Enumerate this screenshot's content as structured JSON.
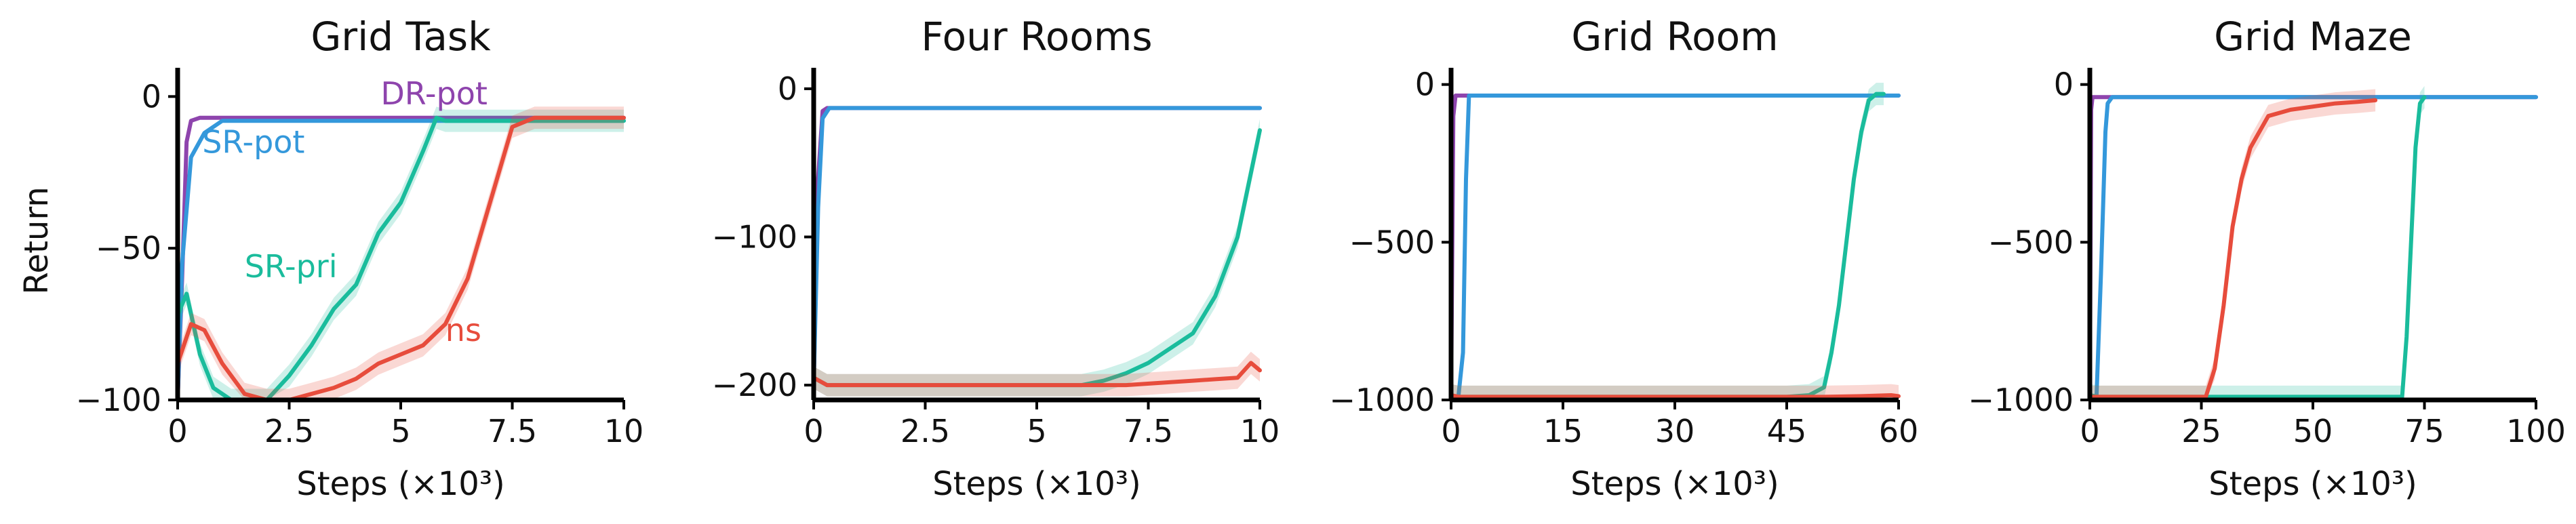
{
  "colors": {
    "DR-pot": "#8e44ad",
    "SR-pot": "#3498db",
    "SR-pri": "#1abc9c",
    "ns": "#e74c3c"
  },
  "chart_data": [
    {
      "type": "line",
      "title": "Grid Task",
      "xlabel": "Steps (×10³)",
      "ylabel": "Return",
      "xlim": [
        0,
        10
      ],
      "ylim": [
        -100,
        5
      ],
      "xticks": [
        0,
        2.5,
        5,
        7.5,
        10
      ],
      "xtick_labels": [
        "0",
        "2.5",
        "5",
        "7.5",
        "10"
      ],
      "yticks": [
        0,
        -50,
        -100
      ],
      "ytick_labels": [
        "0",
        "−50",
        "−100"
      ],
      "grid": false,
      "annotations": [
        {
          "text": "DR-pot",
          "series": "DR-pot",
          "x": 4.55,
          "y": 1
        },
        {
          "text": "SR-pot",
          "series": "SR-pot",
          "x": 0.55,
          "y": -15
        },
        {
          "text": "SR-pri",
          "series": "SR-pri",
          "x": 1.5,
          "y": -56
        },
        {
          "text": "ns",
          "series": "ns",
          "x": 6.0,
          "y": -77
        }
      ],
      "series": [
        {
          "name": "DR-pot",
          "x": [
            0,
            0.1,
            0.2,
            0.3,
            0.5,
            10
          ],
          "y": [
            -100,
            -60,
            -15,
            -8,
            -7,
            -7
          ]
        },
        {
          "name": "SR-pot",
          "x": [
            0,
            0.1,
            0.3,
            0.6,
            1.0,
            10
          ],
          "y": [
            -100,
            -55,
            -20,
            -12,
            -8,
            -8
          ]
        },
        {
          "name": "SR-pri",
          "x": [
            0,
            0.2,
            0.5,
            0.8,
            1.2,
            2.0,
            2.5,
            3.0,
            3.5,
            4.0,
            4.5,
            5.0,
            5.5,
            5.8,
            6.0,
            10
          ],
          "y": [
            -72,
            -65,
            -85,
            -96,
            -100,
            -100,
            -92,
            -82,
            -70,
            -62,
            -45,
            -35,
            -18,
            -7,
            -8,
            -8
          ]
        },
        {
          "name": "ns",
          "x": [
            0,
            0.3,
            0.6,
            1.0,
            1.5,
            2.0,
            2.5,
            3.0,
            3.5,
            4.0,
            4.5,
            5.0,
            5.5,
            6.0,
            6.5,
            7.0,
            7.5,
            8.0,
            10
          ],
          "y": [
            -88,
            -75,
            -77,
            -88,
            -98,
            -100,
            -100,
            -98,
            -96,
            -93,
            -88,
            -85,
            -82,
            -75,
            -60,
            -35,
            -10,
            -7,
            -7
          ]
        }
      ]
    },
    {
      "type": "line",
      "title": "Four Rooms",
      "xlabel": "Steps (×10³)",
      "ylabel": "",
      "xlim": [
        0,
        10
      ],
      "ylim": [
        -210,
        5
      ],
      "xticks": [
        0,
        2.5,
        5,
        7.5,
        10
      ],
      "xtick_labels": [
        "0",
        "2.5",
        "5",
        "7.5",
        "10"
      ],
      "yticks": [
        0,
        -100,
        -200
      ],
      "ytick_labels": [
        "0",
        "−100",
        "−200"
      ],
      "grid": false,
      "series": [
        {
          "name": "DR-pot",
          "x": [
            0,
            0.1,
            0.2,
            0.3,
            10
          ],
          "y": [
            -200,
            -60,
            -15,
            -13,
            -13
          ]
        },
        {
          "name": "SR-pot",
          "x": [
            0,
            0.1,
            0.2,
            0.35,
            10
          ],
          "y": [
            -200,
            -80,
            -20,
            -13,
            -13
          ]
        },
        {
          "name": "SR-pri",
          "x": [
            0,
            0.3,
            2.5,
            5.0,
            6.0,
            6.5,
            7.0,
            7.5,
            8.0,
            8.5,
            9.0,
            9.5,
            10
          ],
          "y": [
            -195,
            -200,
            -200,
            -200,
            -200,
            -197,
            -192,
            -185,
            -175,
            -165,
            -140,
            -100,
            -28
          ]
        },
        {
          "name": "ns",
          "x": [
            0,
            0.3,
            5.0,
            7.0,
            8.0,
            8.5,
            9.0,
            9.5,
            9.8,
            10
          ],
          "y": [
            -195,
            -200,
            -200,
            -200,
            -198,
            -197,
            -196,
            -195,
            -185,
            -190
          ]
        }
      ]
    },
    {
      "type": "line",
      "title": "Grid Room",
      "xlabel": "Steps (×10³)",
      "ylabel": "",
      "xlim": [
        0,
        60
      ],
      "ylim": [
        -1000,
        10
      ],
      "xticks": [
        0,
        15,
        30,
        45,
        60
      ],
      "xtick_labels": [
        "0",
        "15",
        "30",
        "45",
        "60"
      ],
      "yticks": [
        0,
        -500,
        -1000
      ],
      "ytick_labels": [
        "0",
        "−500",
        "−1000"
      ],
      "grid": false,
      "series": [
        {
          "name": "DR-pot",
          "x": [
            0,
            0.3,
            0.6,
            60
          ],
          "y": [
            -1000,
            -100,
            -35,
            -35
          ]
        },
        {
          "name": "SR-pot",
          "x": [
            0,
            1.0,
            1.6,
            2.0,
            2.4,
            60
          ],
          "y": [
            -1000,
            -985,
            -850,
            -300,
            -35,
            -35
          ]
        },
        {
          "name": "SR-pri",
          "x": [
            0,
            1,
            45,
            48,
            50,
            51,
            52,
            53,
            54,
            55,
            56,
            57,
            58
          ],
          "y": [
            -985,
            -990,
            -990,
            -985,
            -960,
            -850,
            -700,
            -500,
            -300,
            -150,
            -50,
            -30,
            -30
          ]
        },
        {
          "name": "ns",
          "x": [
            0,
            1,
            45,
            50,
            55,
            59,
            60
          ],
          "y": [
            -985,
            -990,
            -990,
            -990,
            -988,
            -985,
            -988
          ]
        }
      ]
    },
    {
      "type": "line",
      "title": "Grid Maze",
      "xlabel": "Steps (×10³)",
      "ylabel": "",
      "xlim": [
        0,
        100
      ],
      "ylim": [
        -1000,
        10
      ],
      "xticks": [
        0,
        25,
        50,
        75,
        100
      ],
      "xtick_labels": [
        "0",
        "25",
        "50",
        "75",
        "100"
      ],
      "yticks": [
        0,
        -500,
        -1000
      ],
      "ytick_labels": [
        "0",
        "−500",
        "−1000"
      ],
      "grid": false,
      "series": [
        {
          "name": "DR-pot",
          "x": [
            0,
            0.3,
            0.6,
            100
          ],
          "y": [
            -1000,
            -80,
            -40,
            -40
          ]
        },
        {
          "name": "SR-pot",
          "x": [
            0,
            1.5,
            2.5,
            3.5,
            4.0,
            5.0,
            100
          ],
          "y": [
            -985,
            -990,
            -600,
            -150,
            -60,
            -40,
            -40
          ]
        },
        {
          "name": "SR-pri",
          "x": [
            0,
            2,
            70,
            71,
            72,
            73,
            74,
            75
          ],
          "y": [
            -985,
            -990,
            -990,
            -800,
            -500,
            -200,
            -60,
            -40
          ]
        },
        {
          "name": "ns",
          "x": [
            0,
            2,
            26,
            28,
            30,
            32,
            34,
            36,
            38,
            40,
            45,
            50,
            55,
            60,
            64
          ],
          "y": [
            -990,
            -990,
            -990,
            -900,
            -700,
            -450,
            -300,
            -200,
            -150,
            -100,
            -80,
            -70,
            -60,
            -55,
            -50
          ]
        }
      ]
    }
  ]
}
